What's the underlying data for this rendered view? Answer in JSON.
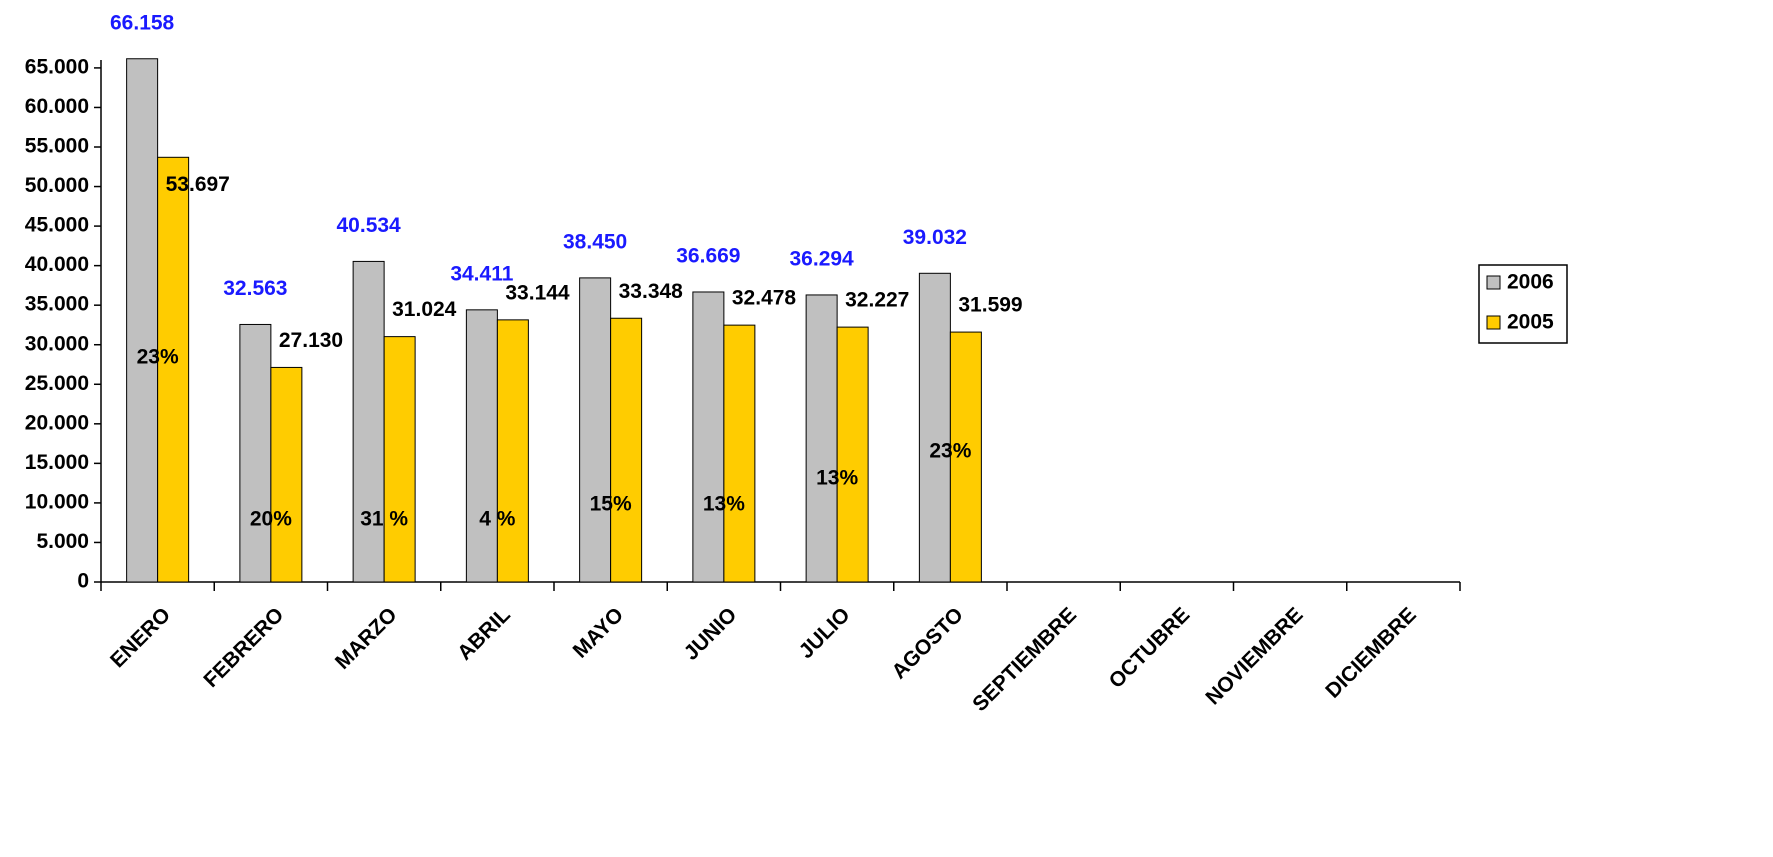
{
  "chart_data": {
    "type": "bar",
    "categories": [
      "ENERO",
      "FEBRERO",
      "MARZO",
      "ABRIL",
      "MAYO",
      "JUNIO",
      "JULIO",
      "AGOSTO",
      "SEPTIEMBRE",
      "OCTUBRE",
      "NOVIEMBRE",
      "DICIEMBRE"
    ],
    "series": [
      {
        "name": "2006",
        "color": "#c0c0c0",
        "label_color": "#1a1aff",
        "values": [
          66158,
          32563,
          40534,
          34411,
          38450,
          36669,
          36294,
          39032,
          null,
          null,
          null,
          null
        ],
        "value_labels": [
          "66.158",
          "32.563",
          "40.534",
          "34.411",
          "38.450",
          "36.669",
          "36.294",
          "39.032",
          null,
          null,
          null,
          null
        ]
      },
      {
        "name": "2005",
        "color": "#ffcc00",
        "label_color": "#000000",
        "values": [
          53697,
          27130,
          31024,
          33144,
          33348,
          32478,
          32227,
          31599,
          null,
          null,
          null,
          null
        ],
        "value_labels": [
          "53.697",
          "27.130",
          "31.024",
          "33.144",
          "33.348",
          "32.478",
          "32.227",
          "31.599",
          null,
          null,
          null,
          null
        ]
      }
    ],
    "growth_labels": [
      "23%",
      "20%",
      "31 %",
      "4 %",
      "15%",
      "13%",
      "13%",
      "23%"
    ],
    "ylim": [
      0,
      66000
    ],
    "yticks": [
      0,
      {
        "value": 5000,
        "label": "5.000"
      },
      {
        "value": 10000,
        "label": "10.000"
      },
      {
        "value": 15000,
        "label": "15.000"
      },
      {
        "value": 20000,
        "label": "20.000"
      },
      {
        "value": 25000,
        "label": "25.000"
      },
      {
        "value": 30000,
        "label": "30.000"
      },
      {
        "value": 35000,
        "label": "35.000"
      },
      {
        "value": 40000,
        "label": "40.000"
      },
      {
        "value": 45000,
        "label": "45.000"
      },
      {
        "value": 50000,
        "label": "50.000"
      },
      {
        "value": 55000,
        "label": "55.000"
      },
      {
        "value": 60000,
        "label": "60.000"
      },
      {
        "value": 65000,
        "label": "65.000"
      }
    ],
    "legend": "right"
  }
}
